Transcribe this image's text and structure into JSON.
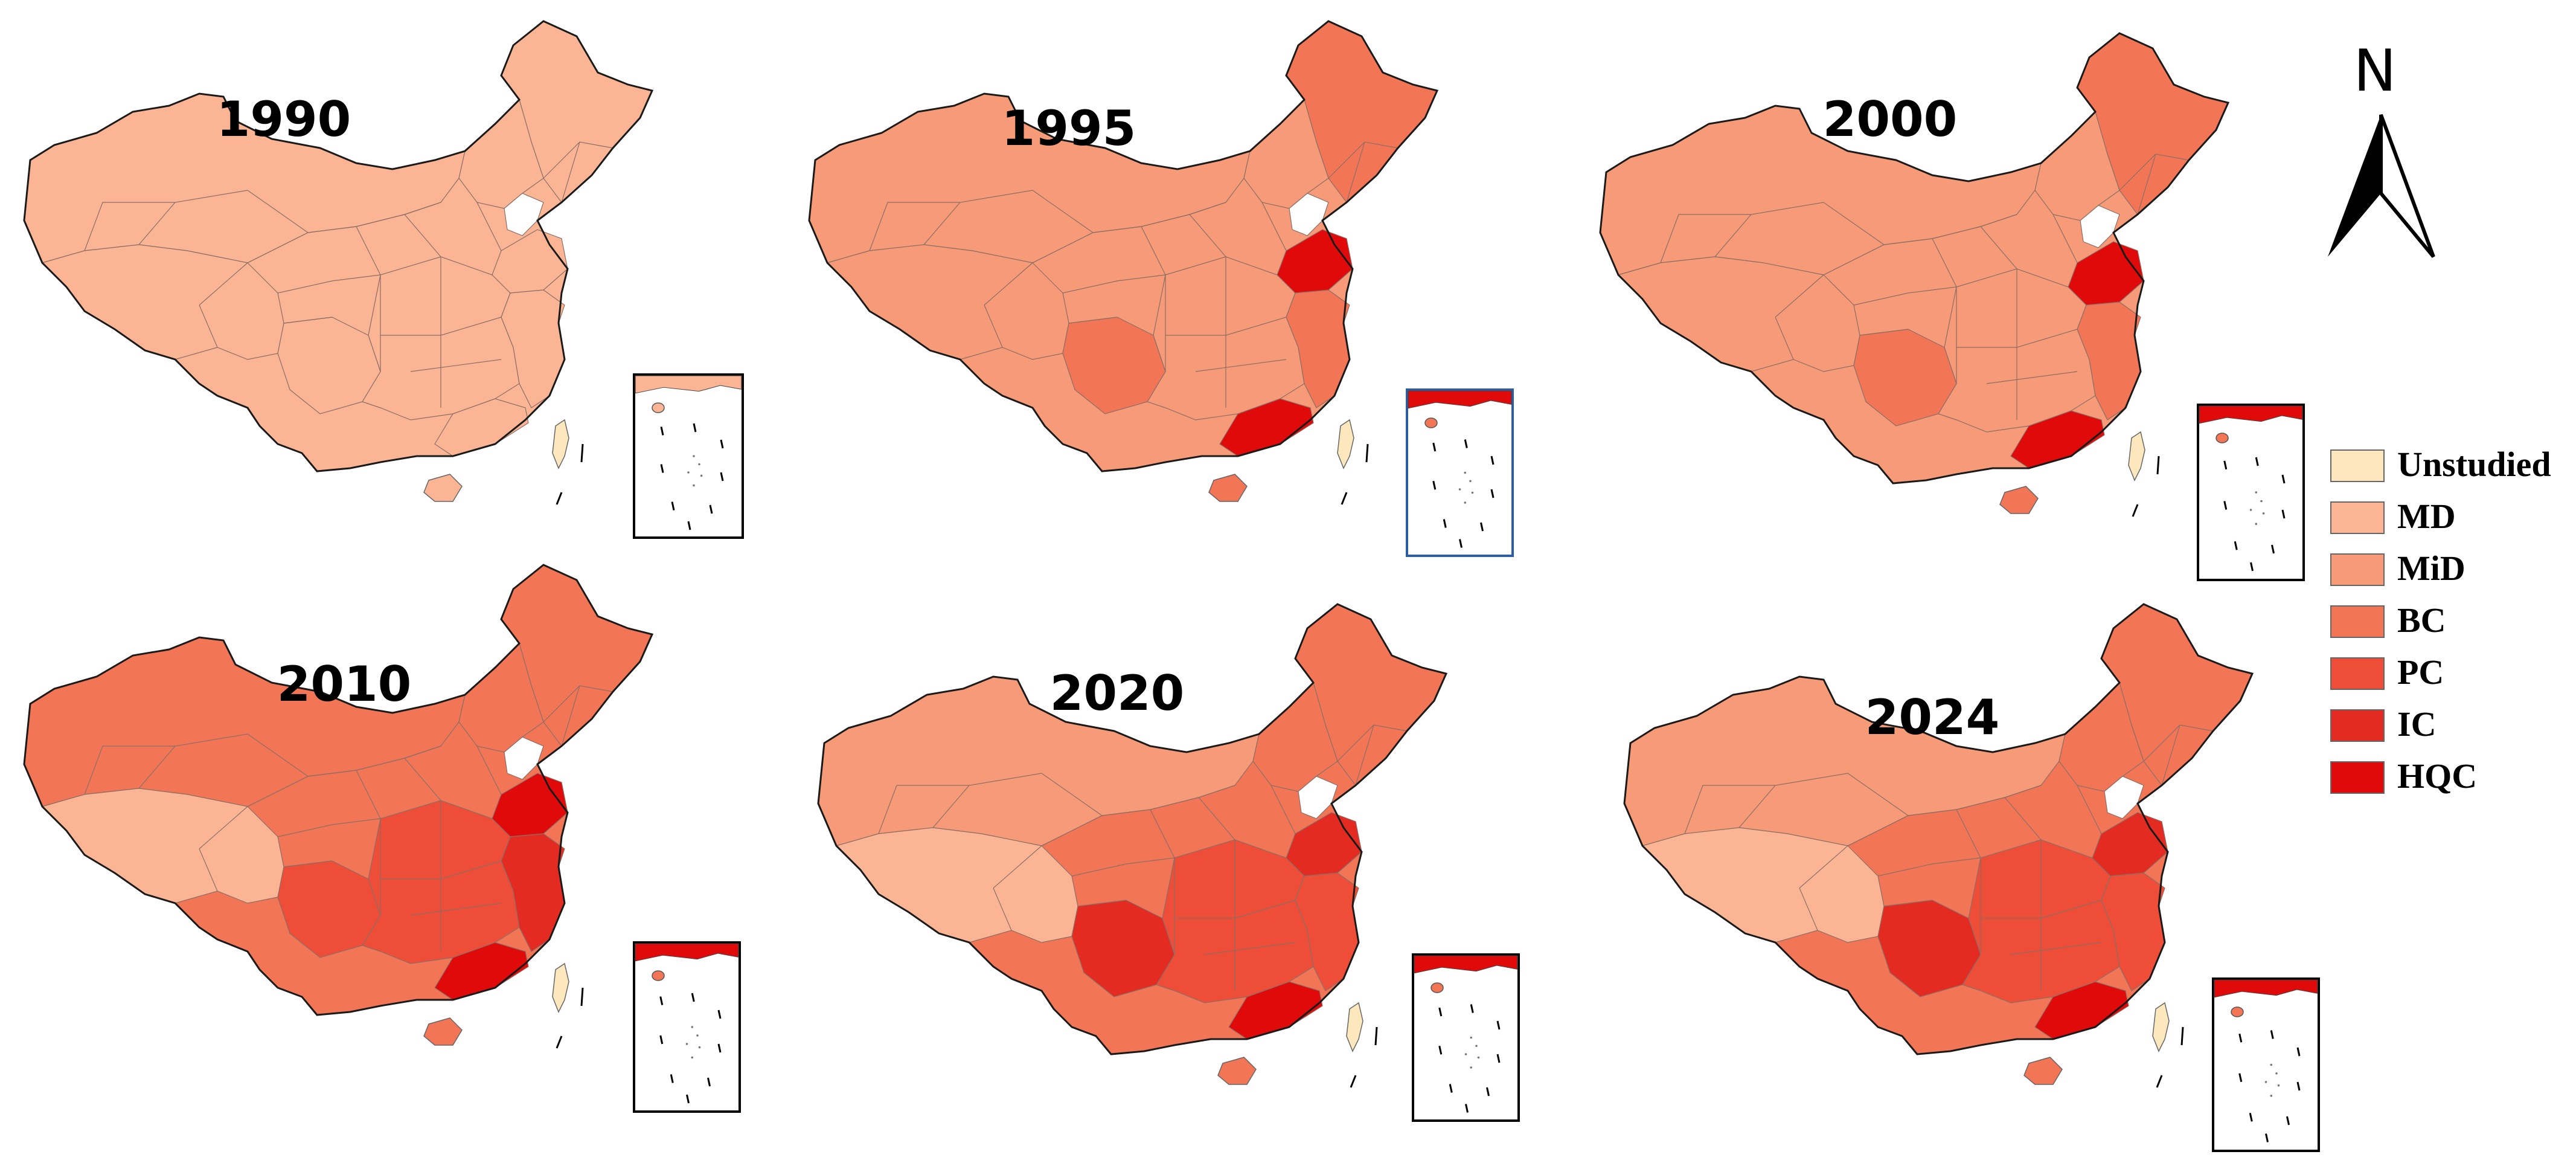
{
  "legend": {
    "items": [
      {
        "key": "unstudied",
        "label": "Unstudied",
        "color": "#FDE7BC"
      },
      {
        "key": "md",
        "label": "MD",
        "color": "#FCB594"
      },
      {
        "key": "mid",
        "label": "MiD",
        "color": "#F79A77"
      },
      {
        "key": "bc",
        "label": "BC",
        "color": "#F27556"
      },
      {
        "key": "pc",
        "label": "PC",
        "color": "#EE4D38"
      },
      {
        "key": "ic",
        "label": "IC",
        "color": "#E42B22"
      },
      {
        "key": "hqc",
        "label": "HQC",
        "color": "#E00A0A"
      }
    ]
  },
  "north_arrow": {
    "label": "N"
  },
  "panels": [
    {
      "year": "1990",
      "base": "md",
      "zones": {
        "northeast": "md",
        "north_coast": "md",
        "shandong": "md",
        "east_coast": "md",
        "south_coast": "md",
        "sichuan": "md",
        "central": "md",
        "west": "md",
        "inner": "md"
      }
    },
    {
      "year": "1995",
      "base": "mid",
      "zones": {
        "northeast": "bc",
        "north_coast": "mid",
        "shandong": "hqc",
        "east_coast": "bc",
        "south_coast": "hqc",
        "sichuan": "bc",
        "central": "mid",
        "west": "mid",
        "inner": "mid"
      }
    },
    {
      "year": "2000",
      "base": "mid",
      "zones": {
        "northeast": "bc",
        "north_coast": "mid",
        "shandong": "hqc",
        "east_coast": "bc",
        "south_coast": "hqc",
        "sichuan": "bc",
        "central": "mid",
        "west": "mid",
        "inner": "mid"
      }
    },
    {
      "year": "2010",
      "base": "bc",
      "zones": {
        "northeast": "bc",
        "north_coast": "bc",
        "shandong": "hqc",
        "east_coast": "ic",
        "south_coast": "hqc",
        "sichuan": "pc",
        "central": "pc",
        "west": "md",
        "inner": "bc"
      }
    },
    {
      "year": "2020",
      "base": "bc",
      "zones": {
        "northeast": "bc",
        "north_coast": "bc",
        "shandong": "ic",
        "east_coast": "pc",
        "south_coast": "hqc",
        "sichuan": "ic",
        "central": "pc",
        "west": "md",
        "inner": "mid"
      }
    },
    {
      "year": "2024",
      "base": "bc",
      "zones": {
        "northeast": "bc",
        "north_coast": "bc",
        "shandong": "ic",
        "east_coast": "pc",
        "south_coast": "hqc",
        "sichuan": "ic",
        "central": "pc",
        "west": "md",
        "inner": "mid"
      }
    }
  ]
}
